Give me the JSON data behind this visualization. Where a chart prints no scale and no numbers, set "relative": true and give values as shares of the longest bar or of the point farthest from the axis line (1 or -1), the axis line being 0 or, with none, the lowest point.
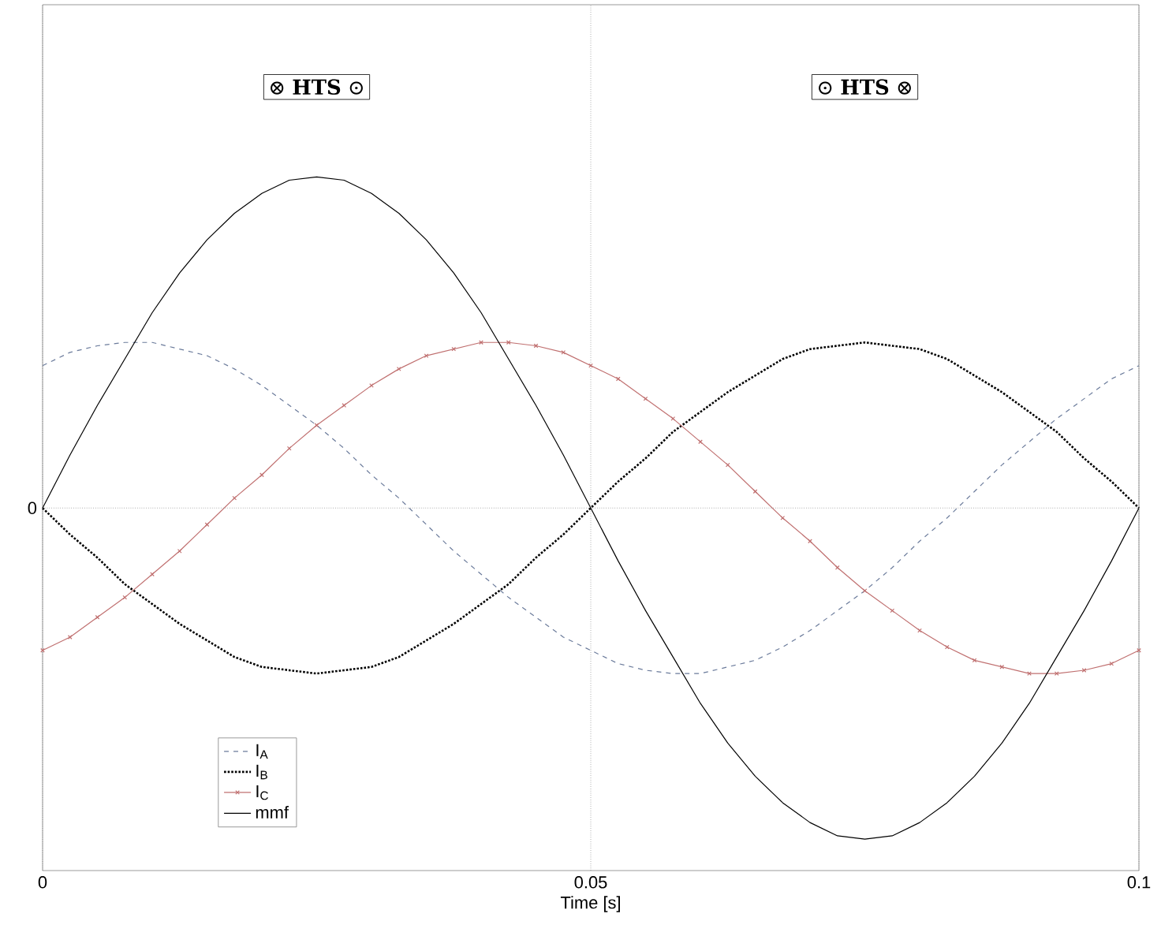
{
  "chart_data": {
    "type": "line",
    "relative": true,
    "xlabel": "Time [s]",
    "annotations": [
      "⊗ **HTS** ⊙",
      "⊙ **HTS** ⊗"
    ],
    "x": [
      0,
      0.0025,
      0.005,
      0.0075,
      0.01,
      0.0125,
      0.015,
      0.0175,
      0.02,
      0.0225,
      0.025,
      0.0275,
      0.03,
      0.0325,
      0.035,
      0.0375,
      0.04,
      0.0425,
      0.045,
      0.0475,
      0.05,
      0.0525,
      0.055,
      0.0575,
      0.06,
      0.0625,
      0.065,
      0.0675,
      0.07,
      0.0725,
      0.075,
      0.0775,
      0.08,
      0.0825,
      0.085,
      0.0875,
      0.09,
      0.0925,
      0.095,
      0.0975,
      0.1
    ],
    "xlim": [
      0,
      0.1
    ],
    "xticks": [
      0,
      0.05,
      0.1
    ],
    "grid": "x",
    "legend": "bottom left",
    "ref_lines": [
      {
        "axis": "y",
        "value": 0,
        "label": "0",
        "line_style": "dotted"
      }
    ],
    "series": [
      {
        "name": "I$_{A}$",
        "color": "#6b7b9b",
        "line_style": "dashed",
        "marker": "none",
        "values": [
          0.43,
          0.47,
          0.49,
          0.5,
          0.5,
          0.48,
          0.46,
          0.42,
          0.37,
          0.31,
          0.25,
          0.18,
          0.1,
          0.03,
          -0.05,
          -0.13,
          -0.2,
          -0.27,
          -0.33,
          -0.39,
          -0.43,
          -0.47,
          -0.49,
          -0.5,
          -0.5,
          -0.48,
          -0.46,
          -0.42,
          -0.37,
          -0.31,
          -0.25,
          -0.18,
          -0.1,
          -0.03,
          0.05,
          0.13,
          0.2,
          0.27,
          0.33,
          0.39,
          0.43
        ]
      },
      {
        "name": "I$_{B}$",
        "color": "#000000",
        "line_style": "dotted",
        "marker": "none",
        "values": [
          0,
          -0.08,
          -0.15,
          -0.23,
          -0.29,
          -0.35,
          -0.4,
          -0.45,
          -0.48,
          -0.49,
          -0.5,
          -0.49,
          -0.48,
          -0.45,
          -0.4,
          -0.35,
          -0.29,
          -0.23,
          -0.15,
          -0.08,
          0,
          0.08,
          0.15,
          0.23,
          0.29,
          0.35,
          0.4,
          0.45,
          0.48,
          0.49,
          0.5,
          0.49,
          0.48,
          0.45,
          0.4,
          0.35,
          0.29,
          0.23,
          0.15,
          0.08,
          0
        ]
      },
      {
        "name": "I$_{C}$",
        "color": "#c07070",
        "line_style": "solid",
        "marker": "cross",
        "values": [
          -0.43,
          -0.39,
          -0.33,
          -0.27,
          -0.2,
          -0.13,
          -0.05,
          0.03,
          0.1,
          0.18,
          0.25,
          0.31,
          0.37,
          0.42,
          0.46,
          0.48,
          0.5,
          0.5,
          0.49,
          0.47,
          0.43,
          0.39,
          0.33,
          0.27,
          0.2,
          0.13,
          0.05,
          -0.03,
          -0.1,
          -0.18,
          -0.25,
          -0.31,
          -0.37,
          -0.42,
          -0.46,
          -0.48,
          -0.5,
          -0.5,
          -0.49,
          -0.47,
          -0.43
        ]
      },
      {
        "name": "mmf",
        "color": "#000000",
        "line_style": "solid",
        "marker": "none",
        "values": [
          0,
          0.16,
          0.31,
          0.45,
          0.59,
          0.71,
          0.81,
          0.89,
          0.95,
          0.99,
          1,
          0.99,
          0.95,
          0.89,
          0.81,
          0.71,
          0.59,
          0.45,
          0.31,
          0.16,
          0,
          -0.16,
          -0.31,
          -0.45,
          -0.59,
          -0.71,
          -0.81,
          -0.89,
          -0.95,
          -0.99,
          -1,
          -0.99,
          -0.95,
          -0.89,
          -0.81,
          -0.71,
          -0.59,
          -0.45,
          -0.31,
          -0.16,
          0
        ]
      }
    ]
  }
}
